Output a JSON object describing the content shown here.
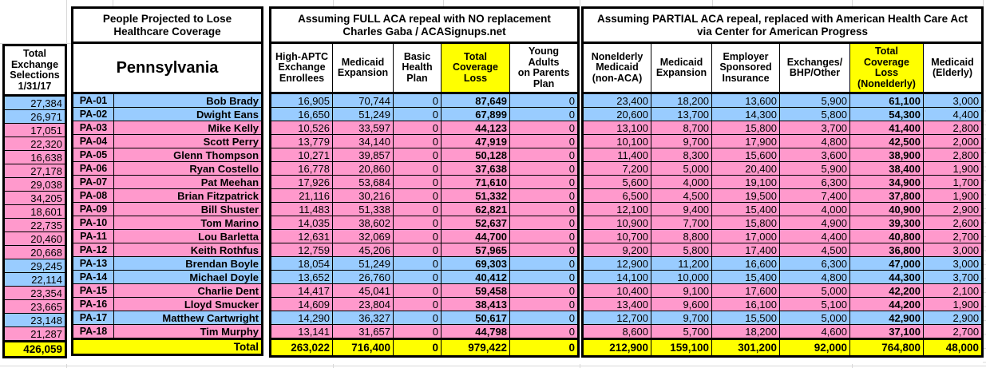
{
  "colors": {
    "row_blue": "#99CCFF",
    "row_pink": "#FF99CC",
    "highlight_yellow": "#FFFF00",
    "border": "#000000"
  },
  "left_column": {
    "header": "Total\nExchange\nSelections\n1/31/17",
    "total": "426,059"
  },
  "section_people": {
    "title": "People Projected to Lose\nHealthcare Coverage",
    "subtitle": "Pennsylvania",
    "total_label": "Total"
  },
  "section_full": {
    "title": "Assuming FULL ACA repeal with NO replacement\nCharles Gaba / ACASignups.net",
    "columns": [
      "High-APTC\nExchange\nEnrollees",
      "Medicaid\nExpansion",
      "Basic\nHealth\nPlan",
      "Total\nCoverage\nLoss",
      "Young\nAdults\non Parents\nPlan"
    ],
    "totals": [
      "263,022",
      "716,400",
      "0",
      "979,422",
      "0"
    ]
  },
  "section_partial": {
    "title": "Assuming PARTIAL ACA repeal, replaced with American Health Care Act\nvia Center for American Progress",
    "columns": [
      "Nonelderly\nMedicaid\n(non-ACA)",
      "Medicaid\nExpansion",
      "Employer\nSponsored\nInsurance",
      "Exchanges/\nBHP/Other",
      "Total\nCoverage\nLoss\n(Nonelderly)",
      "Medicaid\n(Elderly)"
    ],
    "totals": [
      "212,900",
      "159,100",
      "301,200",
      "92,000",
      "764,800",
      "48,000"
    ]
  },
  "rows": [
    {
      "district": "PA-01",
      "rep": "Bob Brady",
      "party_color": "blue",
      "exchange_selections": "27,384",
      "full": [
        "16,905",
        "70,744",
        "0",
        "87,649",
        "0"
      ],
      "partial": [
        "23,400",
        "18,200",
        "13,600",
        "5,900",
        "61,100",
        "3,000"
      ]
    },
    {
      "district": "PA-02",
      "rep": "Dwight Eans",
      "party_color": "blue",
      "exchange_selections": "26,971",
      "full": [
        "16,650",
        "51,249",
        "0",
        "67,899",
        "0"
      ],
      "partial": [
        "20,600",
        "13,700",
        "14,300",
        "5,800",
        "54,300",
        "4,400"
      ]
    },
    {
      "district": "PA-03",
      "rep": "Mike Kelly",
      "party_color": "pink",
      "exchange_selections": "17,051",
      "full": [
        "10,526",
        "33,597",
        "0",
        "44,123",
        "0"
      ],
      "partial": [
        "13,100",
        "8,700",
        "15,800",
        "3,700",
        "41,400",
        "2,800"
      ]
    },
    {
      "district": "PA-04",
      "rep": "Scott Perry",
      "party_color": "pink",
      "exchange_selections": "22,320",
      "full": [
        "13,779",
        "34,140",
        "0",
        "47,919",
        "0"
      ],
      "partial": [
        "10,100",
        "9,700",
        "17,900",
        "4,800",
        "42,500",
        "2,000"
      ]
    },
    {
      "district": "PA-05",
      "rep": "Glenn Thompson",
      "party_color": "pink",
      "exchange_selections": "16,638",
      "full": [
        "10,271",
        "39,857",
        "0",
        "50,128",
        "0"
      ],
      "partial": [
        "11,400",
        "8,300",
        "15,600",
        "3,600",
        "38,900",
        "2,800"
      ]
    },
    {
      "district": "PA-06",
      "rep": "Ryan Costello",
      "party_color": "pink",
      "exchange_selections": "27,178",
      "full": [
        "16,778",
        "20,860",
        "0",
        "37,638",
        "0"
      ],
      "partial": [
        "7,200",
        "5,000",
        "20,400",
        "5,900",
        "38,400",
        "1,900"
      ]
    },
    {
      "district": "PA-07",
      "rep": "Pat Meehan",
      "party_color": "pink",
      "exchange_selections": "29,038",
      "full": [
        "17,926",
        "53,684",
        "0",
        "71,610",
        "0"
      ],
      "partial": [
        "5,600",
        "4,000",
        "19,100",
        "6,300",
        "34,900",
        "1,700"
      ]
    },
    {
      "district": "PA-08",
      "rep": "Brian Fitzpatrick",
      "party_color": "pink",
      "exchange_selections": "34,205",
      "full": [
        "21,116",
        "30,216",
        "0",
        "51,332",
        "0"
      ],
      "partial": [
        "6,500",
        "4,500",
        "19,500",
        "7,400",
        "37,800",
        "1,900"
      ]
    },
    {
      "district": "PA-09",
      "rep": "Bill Shuster",
      "party_color": "pink",
      "exchange_selections": "18,601",
      "full": [
        "11,483",
        "51,338",
        "0",
        "62,821",
        "0"
      ],
      "partial": [
        "12,100",
        "9,400",
        "15,400",
        "4,000",
        "40,900",
        "2,900"
      ]
    },
    {
      "district": "PA-10",
      "rep": "Tom Marino",
      "party_color": "pink",
      "exchange_selections": "22,735",
      "full": [
        "14,035",
        "38,602",
        "0",
        "52,637",
        "0"
      ],
      "partial": [
        "10,900",
        "7,700",
        "15,800",
        "4,900",
        "39,300",
        "2,600"
      ]
    },
    {
      "district": "PA-11",
      "rep": "Lou Barletta",
      "party_color": "pink",
      "exchange_selections": "20,460",
      "full": [
        "12,631",
        "32,069",
        "0",
        "44,700",
        "0"
      ],
      "partial": [
        "10,700",
        "8,800",
        "17,000",
        "4,400",
        "40,800",
        "2,700"
      ]
    },
    {
      "district": "PA-12",
      "rep": "Keith Rothfus",
      "party_color": "pink",
      "exchange_selections": "20,668",
      "full": [
        "12,759",
        "45,206",
        "0",
        "57,965",
        "0"
      ],
      "partial": [
        "9,200",
        "5,800",
        "17,400",
        "4,500",
        "36,800",
        "3,000"
      ]
    },
    {
      "district": "PA-13",
      "rep": "Brendan Boyle",
      "party_color": "blue",
      "exchange_selections": "29,245",
      "full": [
        "18,054",
        "51,249",
        "0",
        "69,303",
        "0"
      ],
      "partial": [
        "12,900",
        "11,200",
        "16,600",
        "6,300",
        "47,000",
        "3,000"
      ]
    },
    {
      "district": "PA-14",
      "rep": "Michael Doyle",
      "party_color": "blue",
      "exchange_selections": "22,114",
      "full": [
        "13,652",
        "26,760",
        "0",
        "40,412",
        "0"
      ],
      "partial": [
        "14,100",
        "10,000",
        "15,400",
        "4,800",
        "44,300",
        "3,700"
      ]
    },
    {
      "district": "PA-15",
      "rep": "Charlie Dent",
      "party_color": "pink",
      "exchange_selections": "23,354",
      "full": [
        "14,417",
        "45,041",
        "0",
        "59,458",
        "0"
      ],
      "partial": [
        "10,400",
        "9,100",
        "17,600",
        "5,000",
        "42,200",
        "2,100"
      ]
    },
    {
      "district": "PA-16",
      "rep": "Lloyd Smucker",
      "party_color": "pink",
      "exchange_selections": "23,665",
      "full": [
        "14,609",
        "23,804",
        "0",
        "38,413",
        "0"
      ],
      "partial": [
        "13,400",
        "9,600",
        "16,100",
        "5,100",
        "44,200",
        "1,900"
      ]
    },
    {
      "district": "PA-17",
      "rep": "Matthew Cartwright",
      "party_color": "blue",
      "exchange_selections": "23,148",
      "full": [
        "14,290",
        "36,327",
        "0",
        "50,617",
        "0"
      ],
      "partial": [
        "12,700",
        "9,700",
        "15,500",
        "5,000",
        "42,900",
        "2,900"
      ]
    },
    {
      "district": "PA-18",
      "rep": "Tim Murphy",
      "party_color": "pink",
      "exchange_selections": "21,287",
      "full": [
        "13,141",
        "31,657",
        "0",
        "44,798",
        "0"
      ],
      "partial": [
        "8,600",
        "5,700",
        "18,200",
        "4,600",
        "37,100",
        "2,700"
      ]
    }
  ]
}
